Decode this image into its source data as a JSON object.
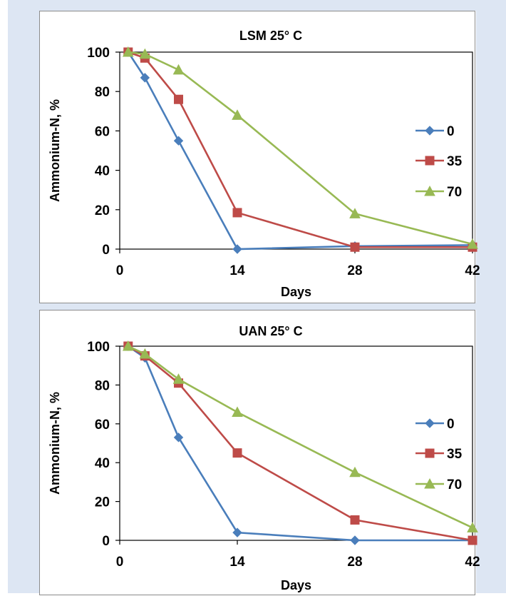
{
  "chart_data": [
    {
      "type": "line",
      "title": "LSM 25° C",
      "xlabel": "Days",
      "ylabel": "Ammonium-N, %",
      "xlim": [
        0,
        42
      ],
      "ylim": [
        0,
        100
      ],
      "xticks": [
        "0",
        "14",
        "28",
        "42"
      ],
      "yticks": [
        "0",
        "20",
        "40",
        "60",
        "80",
        "100"
      ],
      "legend": "right",
      "series": [
        {
          "name": "0",
          "color": "#4a7ebb",
          "marker": "diamond",
          "x": [
            1,
            3,
            7,
            14,
            28,
            42
          ],
          "y": [
            100,
            87,
            55,
            0,
            1.5,
            2
          ]
        },
        {
          "name": "35",
          "color": "#be4b48",
          "marker": "square",
          "x": [
            1,
            3,
            7,
            14,
            28,
            42
          ],
          "y": [
            100,
            97,
            76,
            18.5,
            1,
            1
          ]
        },
        {
          "name": "70",
          "color": "#98b954",
          "marker": "triangle",
          "x": [
            1,
            3,
            7,
            14,
            28,
            42
          ],
          "y": [
            100,
            99,
            91,
            68,
            18,
            2.5
          ]
        }
      ]
    },
    {
      "type": "line",
      "title": "UAN 25° C",
      "xlabel": "Days",
      "ylabel": "Ammonium-N, %",
      "xlim": [
        0,
        42
      ],
      "ylim": [
        0,
        100
      ],
      "xticks": [
        "0",
        "14",
        "28",
        "42"
      ],
      "yticks": [
        "0",
        "20",
        "40",
        "60",
        "80",
        "100"
      ],
      "legend": "right",
      "series": [
        {
          "name": "0",
          "color": "#4a7ebb",
          "marker": "diamond",
          "x": [
            1,
            3,
            7,
            14,
            28,
            42
          ],
          "y": [
            100,
            94,
            53,
            4,
            0,
            0
          ]
        },
        {
          "name": "35",
          "color": "#be4b48",
          "marker": "square",
          "x": [
            1,
            3,
            7,
            14,
            28,
            42
          ],
          "y": [
            100,
            95,
            81,
            45,
            10.5,
            0
          ]
        },
        {
          "name": "70",
          "color": "#98b954",
          "marker": "triangle",
          "x": [
            1,
            3,
            7,
            14,
            28,
            42
          ],
          "y": [
            100,
            96,
            83,
            66,
            35,
            6.5
          ]
        }
      ]
    }
  ]
}
